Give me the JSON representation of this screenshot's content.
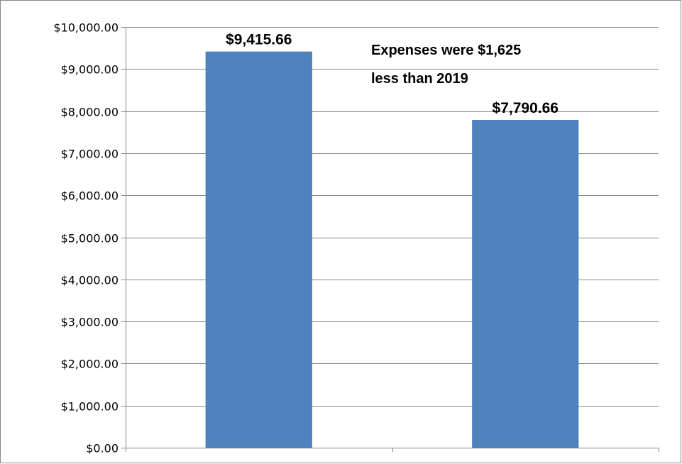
{
  "chart_data": {
    "type": "bar",
    "categories": [
      "",
      ""
    ],
    "values": [
      9415.66,
      7790.66
    ],
    "data_labels": [
      "$9,415.66",
      "$7,790.66"
    ],
    "ylim": [
      0,
      10000
    ],
    "y_ticks": [
      0,
      1000,
      2000,
      3000,
      4000,
      5000,
      6000,
      7000,
      8000,
      9000,
      10000
    ],
    "y_tick_labels": [
      "$0.00",
      "$1,000.00",
      "$2,000.00",
      "$3,000.00",
      "$4,000.00",
      "$5,000.00",
      "$6,000.00",
      "$7,000.00",
      "$8,000.00",
      "$9,000.00",
      "$10,000.00"
    ],
    "grid": true,
    "legend": "none",
    "annotation": {
      "lines": [
        "Expenses were $1,625",
        "less than 2019"
      ]
    },
    "colors": {
      "bar": "#4f81bd",
      "grid": "#868686",
      "axis": "#868686",
      "border": "#868686",
      "text": "#000000"
    }
  }
}
